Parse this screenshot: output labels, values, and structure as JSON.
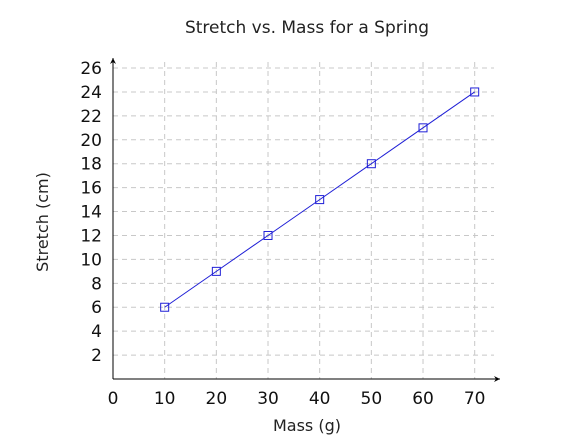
{
  "chart_data": {
    "type": "line",
    "title": "Stretch vs. Mass for a Spring",
    "xlabel": "Mass (g)",
    "ylabel": "Stretch (cm)",
    "xlim": [
      0,
      76
    ],
    "ylim": [
      0,
      27
    ],
    "x_ticks": [
      0,
      10,
      20,
      30,
      40,
      50,
      60,
      70
    ],
    "y_ticks": [
      2,
      4,
      6,
      8,
      10,
      12,
      14,
      16,
      18,
      20,
      22,
      24,
      26
    ],
    "grid": true,
    "x": [
      10,
      20,
      30,
      40,
      50,
      60,
      70
    ],
    "series": [
      {
        "values": [
          6,
          9,
          12,
          15,
          18,
          21,
          24
        ],
        "color": "#1f1fd6",
        "marker": "square"
      }
    ]
  }
}
